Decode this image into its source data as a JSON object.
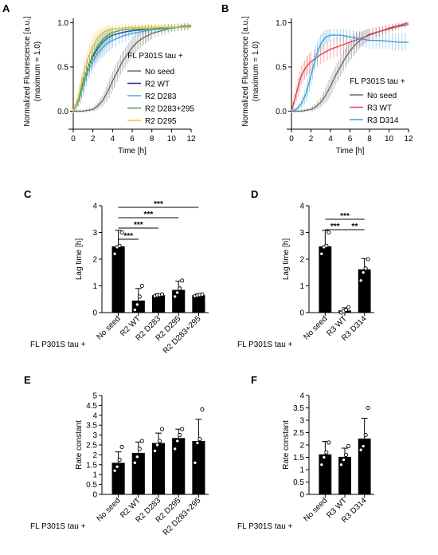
{
  "panels": {
    "A": "A",
    "B": "B",
    "C": "C",
    "D": "D",
    "E": "E",
    "F": "F"
  },
  "chart_data": [
    {
      "panel": "A",
      "type": "line",
      "xlabel": "Time [h]",
      "ylabel": "Normalized Fluorescence [a.u.]",
      "ylabel2": "(maximum = 1.0)",
      "xlim": [
        0,
        12
      ],
      "ylim": [
        -0.15,
        1.05
      ],
      "xticks": [
        0,
        2,
        4,
        6,
        8,
        10,
        12
      ],
      "yticks": [
        0.0,
        0.5,
        1.0
      ],
      "ytick_labels": [
        "0.0",
        "0.5",
        "1.0"
      ],
      "legend_title": "FL P301S tau +",
      "legend_position": "right",
      "series": [
        {
          "name": "No seed",
          "color": "#6b6b6b",
          "x": [
            0,
            1,
            2,
            2.5,
            3,
            3.5,
            4,
            4.5,
            5,
            5.5,
            6,
            6.5,
            7,
            7.5,
            8,
            9,
            10,
            11,
            12
          ],
          "y": [
            0,
            0,
            0.02,
            0.06,
            0.12,
            0.22,
            0.34,
            0.45,
            0.56,
            0.64,
            0.72,
            0.78,
            0.82,
            0.85,
            0.88,
            0.91,
            0.94,
            0.96,
            0.97
          ]
        },
        {
          "name": "R2 WT",
          "color": "#1f2fb0",
          "x": [
            0,
            0.5,
            1,
            1.5,
            2,
            2.5,
            3,
            3.5,
            4,
            5,
            6,
            7,
            8,
            9,
            10,
            11,
            12
          ],
          "y": [
            0,
            0.12,
            0.33,
            0.5,
            0.62,
            0.71,
            0.78,
            0.83,
            0.86,
            0.89,
            0.91,
            0.92,
            0.93,
            0.94,
            0.95,
            0.95,
            0.96
          ]
        },
        {
          "name": "R2 D283",
          "color": "#4ea8de",
          "x": [
            0,
            0.5,
            1,
            1.5,
            2,
            2.5,
            3,
            3.5,
            4,
            5,
            6,
            7,
            8,
            9,
            10,
            11,
            12
          ],
          "y": [
            0,
            0.1,
            0.28,
            0.45,
            0.57,
            0.66,
            0.72,
            0.77,
            0.8,
            0.85,
            0.88,
            0.9,
            0.92,
            0.93,
            0.94,
            0.95,
            0.96
          ]
        },
        {
          "name": "R2 D283+295",
          "color": "#3fa34d",
          "x": [
            0,
            0.5,
            1,
            1.5,
            2,
            2.5,
            3,
            3.5,
            4,
            5,
            6,
            7,
            8,
            9,
            10,
            11,
            12
          ],
          "y": [
            0,
            0.12,
            0.32,
            0.5,
            0.64,
            0.74,
            0.81,
            0.86,
            0.89,
            0.92,
            0.93,
            0.93,
            0.93,
            0.94,
            0.94,
            0.95,
            0.95
          ]
        },
        {
          "name": "R2 D295",
          "color": "#e8c23a",
          "x": [
            0,
            0.5,
            1,
            1.5,
            2,
            2.5,
            3,
            3.5,
            4,
            5,
            6,
            7,
            8,
            9,
            10,
            11,
            12
          ],
          "y": [
            0,
            0.15,
            0.4,
            0.6,
            0.74,
            0.83,
            0.89,
            0.92,
            0.93,
            0.94,
            0.95,
            0.95,
            0.95,
            0.95,
            0.95,
            0.95,
            0.95
          ]
        }
      ]
    },
    {
      "panel": "B",
      "type": "line",
      "xlabel": "Time [h]",
      "ylabel": "Normalized Fluorescence [a.u.]",
      "ylabel2": "(maximum = 1.0)",
      "xlim": [
        0,
        12
      ],
      "ylim": [
        -0.15,
        1.05
      ],
      "xticks": [
        0,
        2,
        4,
        6,
        8,
        10,
        12
      ],
      "yticks": [
        0.0,
        0.5,
        1.0
      ],
      "ytick_labels": [
        "0.0",
        "0.5",
        "1.0"
      ],
      "legend_title": "FL P301S tau +",
      "legend_position": "bottom-right",
      "series": [
        {
          "name": "No seed",
          "color": "#6b6b6b",
          "x": [
            0,
            1,
            2,
            2.5,
            3,
            3.5,
            4,
            4.5,
            5,
            5.5,
            6,
            6.5,
            7,
            7.5,
            8,
            9,
            10,
            11,
            12
          ],
          "y": [
            0,
            0,
            0.02,
            0.05,
            0.1,
            0.18,
            0.28,
            0.4,
            0.5,
            0.6,
            0.68,
            0.75,
            0.8,
            0.84,
            0.87,
            0.9,
            0.93,
            0.96,
            0.98
          ]
        },
        {
          "name": "R3 WT",
          "color": "#e8404a",
          "x": [
            0,
            0.5,
            1,
            1.5,
            2,
            3,
            4,
            5,
            6,
            7,
            8,
            9,
            10,
            11,
            12
          ],
          "y": [
            0,
            0.2,
            0.4,
            0.5,
            0.56,
            0.64,
            0.7,
            0.74,
            0.78,
            0.82,
            0.86,
            0.9,
            0.94,
            0.97,
            1.0
          ]
        },
        {
          "name": "R3 D314",
          "color": "#3fa0d8",
          "x": [
            0,
            0.5,
            1,
            1.5,
            2,
            2.5,
            3,
            3.5,
            4,
            5,
            6,
            7,
            8,
            9,
            10,
            11,
            12
          ],
          "y": [
            0,
            0.02,
            0.08,
            0.2,
            0.4,
            0.62,
            0.76,
            0.84,
            0.86,
            0.86,
            0.84,
            0.82,
            0.8,
            0.8,
            0.79,
            0.78,
            0.78
          ]
        }
      ]
    },
    {
      "panel": "C",
      "type": "bar",
      "ylabel": "Lag time [h]",
      "ylim": [
        0,
        4
      ],
      "yticks": [
        0,
        1,
        2,
        3,
        4
      ],
      "row_label": "FL P301S tau +",
      "categories": [
        "No seed",
        "R2 WT",
        "R2 D283",
        "R2 D295",
        "R2 D283+295"
      ],
      "values": [
        2.48,
        0.45,
        0.65,
        0.85,
        0.65
      ],
      "errors": [
        0.6,
        0.45,
        0.05,
        0.33,
        0.05
      ],
      "points": [
        [
          2.2,
          2.45,
          2.5,
          3.0
        ],
        [
          0.1,
          0.3,
          0.6,
          1.0
        ],
        [
          0.62,
          0.65,
          0.66,
          0.68
        ],
        [
          0.6,
          0.75,
          0.9,
          1.2
        ],
        [
          0.62,
          0.64,
          0.66,
          0.68
        ]
      ],
      "significance": [
        {
          "from": 0,
          "to": 1,
          "label": "***"
        },
        {
          "from": 0,
          "to": 2,
          "label": "***"
        },
        {
          "from": 0,
          "to": 3,
          "label": "***"
        },
        {
          "from": 0,
          "to": 4,
          "label": "***"
        }
      ]
    },
    {
      "panel": "D",
      "type": "bar",
      "ylabel": "Lag time [h]",
      "ylim": [
        0,
        4
      ],
      "yticks": [
        0,
        1,
        2,
        3,
        4
      ],
      "row_label": "FL P301S tau +",
      "categories": [
        "No seed",
        "R3 WT",
        "R3 D314"
      ],
      "values": [
        2.48,
        0.08,
        1.62
      ],
      "errors": [
        0.6,
        0.1,
        0.4
      ],
      "points": [
        [
          2.2,
          2.45,
          2.5,
          3.0
        ],
        [
          0.0,
          0.05,
          0.1,
          0.2
        ],
        [
          1.2,
          1.5,
          1.65,
          2.0
        ]
      ],
      "significance": [
        {
          "from": 0,
          "to": 1,
          "label": "***"
        },
        {
          "from": 1,
          "to": 2,
          "label": "**"
        },
        {
          "from": 0,
          "to": 2,
          "label": "***"
        }
      ]
    },
    {
      "panel": "E",
      "type": "bar",
      "ylabel": "Rate constant",
      "ylim": [
        0,
        5
      ],
      "yticks": [
        0,
        0.5,
        1,
        1.5,
        2,
        2.5,
        3,
        3.5,
        4,
        4.5,
        5
      ],
      "ytick_labels": [
        "0",
        "0.5",
        "1",
        "1.5",
        "2",
        "2.5",
        "3",
        "3.5",
        "4",
        "4.5",
        "5"
      ],
      "row_label": "FL P301S tau +",
      "categories": [
        "No seed",
        "R2 WT",
        "R2 D283",
        "R2 D295",
        "R2 D283+295"
      ],
      "values": [
        1.6,
        2.1,
        2.6,
        2.85,
        2.7
      ],
      "errors": [
        0.55,
        0.55,
        0.5,
        0.45,
        1.1
      ],
      "points": [
        [
          1.2,
          1.4,
          1.75,
          2.4
        ],
        [
          1.6,
          1.9,
          2.3,
          2.7
        ],
        [
          2.2,
          2.5,
          2.7,
          3.3
        ],
        [
          2.3,
          2.7,
          3.0,
          3.3
        ],
        [
          1.6,
          2.6,
          2.8,
          4.3
        ]
      ]
    },
    {
      "panel": "F",
      "type": "bar",
      "ylabel": "Rate constant",
      "ylim": [
        0,
        4
      ],
      "yticks": [
        0,
        0.5,
        1,
        1.5,
        2,
        2.5,
        3,
        3.5,
        4
      ],
      "ytick_labels": [
        "0",
        "0.5",
        "1",
        "1.5",
        "2",
        "2.5",
        "3",
        "3.5",
        "4"
      ],
      "row_label": "FL P301S tau +",
      "categories": [
        "No seed",
        "R3 WT",
        "R3 D314"
      ],
      "values": [
        1.62,
        1.52,
        2.26
      ],
      "errors": [
        0.52,
        0.35,
        0.82
      ],
      "points": [
        [
          1.2,
          1.5,
          1.7,
          2.1
        ],
        [
          1.2,
          1.4,
          1.6,
          1.95
        ],
        [
          1.8,
          1.95,
          2.4,
          3.5
        ]
      ]
    }
  ]
}
